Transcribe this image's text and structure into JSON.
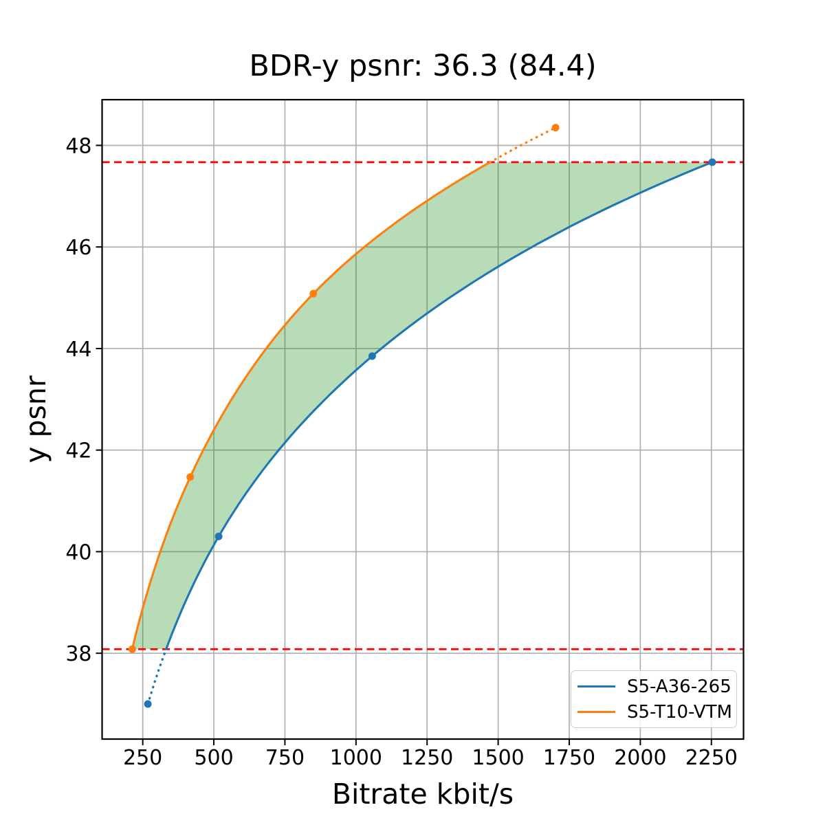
{
  "chart_data": {
    "type": "line",
    "title": "BDR-y psnr: 36.3 (84.4)",
    "xlabel": "Bitrate kbit/s",
    "ylabel": "y psnr",
    "xlim": [
      107,
      2363
    ],
    "ylim": [
      36.31,
      48.9
    ],
    "xticks": [
      250,
      500,
      750,
      1000,
      1250,
      1500,
      1750,
      2000,
      2250
    ],
    "yticks": [
      38,
      40,
      42,
      44,
      46,
      48
    ],
    "grid": true,
    "grid_color": "#b0b0b0",
    "frame_color": "#000000",
    "series": [
      {
        "name": "S5-A36-265",
        "color": "#1f77b4",
        "points_bitrate_psnr": [
          [
            268,
            37.0
          ],
          [
            517,
            40.3
          ],
          [
            1057,
            43.85
          ],
          [
            2253,
            47.67
          ]
        ],
        "solid_psnr_range": [
          38.08,
          47.67
        ],
        "dotted_psnr_range": [
          37.0,
          38.08
        ]
      },
      {
        "name": "S5-T10-VTM",
        "color": "#ff7f0e",
        "points_bitrate_psnr": [
          [
            213,
            38.08
          ],
          [
            417,
            41.47
          ],
          [
            850,
            45.08
          ],
          [
            1702,
            48.35
          ]
        ],
        "solid_psnr_range": [
          38.08,
          47.67
        ],
        "dotted_psnr_range": [
          47.67,
          48.35
        ]
      }
    ],
    "hlines": [
      {
        "y": 47.67,
        "color": "#ff0000",
        "style": "dashed"
      },
      {
        "y": 38.08,
        "color": "#ff0000",
        "style": "dashed"
      }
    ],
    "fill_between": {
      "color": "#008000",
      "opacity": 0.28,
      "psnr_range": [
        38.08,
        47.67
      ],
      "left_series": "S5-T10-VTM",
      "right_series": "S5-A36-265"
    },
    "legend": {
      "position": "lower-right",
      "entries": [
        "S5-A36-265",
        "S5-T10-VTM"
      ]
    }
  }
}
